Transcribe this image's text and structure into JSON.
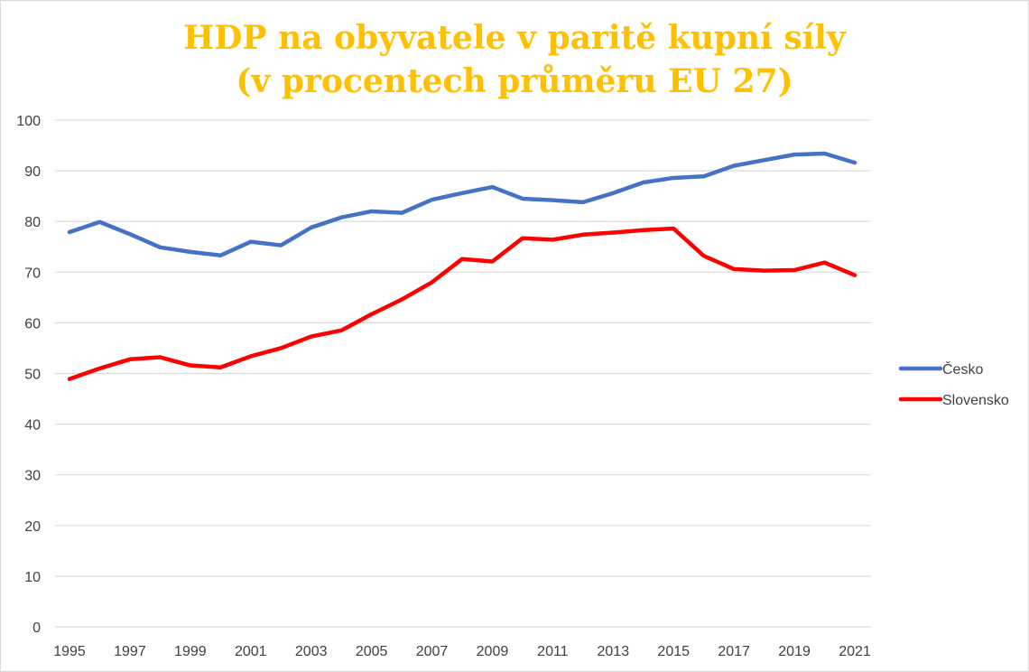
{
  "chart_data": {
    "type": "line",
    "title": [
      "HDP na obyvatele v paritě kupní síly",
      "(v procentech průměru EU 27)"
    ],
    "title_color": "#ffc000",
    "xlabel": "",
    "ylabel": "",
    "ylim": [
      0,
      100
    ],
    "y_ticks": [
      "0",
      "10",
      "20",
      "30",
      "40",
      "50",
      "60",
      "70",
      "80",
      "90",
      "100"
    ],
    "x": [
      1995,
      1996,
      1997,
      1998,
      1999,
      2000,
      2001,
      2002,
      2003,
      2004,
      2005,
      2006,
      2007,
      2008,
      2009,
      2010,
      2011,
      2012,
      2013,
      2014,
      2015,
      2016,
      2017,
      2018,
      2019,
      2020,
      2021
    ],
    "x_tick_labels": [
      "1995",
      "1997",
      "1999",
      "2001",
      "2003",
      "2005",
      "2007",
      "2009",
      "2011",
      "2013",
      "2015",
      "2017",
      "2019",
      "2021"
    ],
    "grid": true,
    "legend_position": "right",
    "series": [
      {
        "name": "Česko",
        "color": "#4472c4",
        "values": [
          77.9,
          79.9,
          77.5,
          74.9,
          74.0,
          73.3,
          76.0,
          75.3,
          78.8,
          80.8,
          82.0,
          81.7,
          84.3,
          85.6,
          86.8,
          84.5,
          84.2,
          83.8,
          85.6,
          87.7,
          88.6,
          88.9,
          91.0,
          92.1,
          93.2,
          93.4,
          91.6
        ]
      },
      {
        "name": "Slovensko",
        "color": "#ff0000",
        "values": [
          48.9,
          51.0,
          52.8,
          53.2,
          51.6,
          51.2,
          53.4,
          55.0,
          57.3,
          58.5,
          61.7,
          64.6,
          68.0,
          72.6,
          72.1,
          76.7,
          76.4,
          77.4,
          77.8,
          78.3,
          78.6,
          73.2,
          70.6,
          70.3,
          70.4,
          71.9,
          69.4
        ]
      }
    ]
  }
}
